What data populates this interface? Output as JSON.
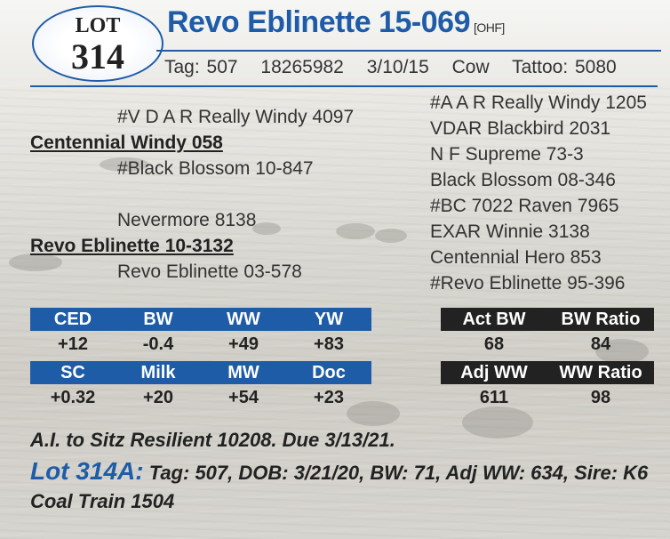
{
  "lot": {
    "label": "LOT",
    "number": "314"
  },
  "animal": {
    "name": "Revo Eblinette 15-069",
    "tag_code": "[OHF]",
    "tag": "Tag: 507",
    "reg": "18265982",
    "dob": "3/10/15",
    "sex": "Cow",
    "tattoo": "Tattoo: 5080"
  },
  "pedigree": {
    "sire": "Centennial Windy 058",
    "sire_sire": "#V D A R Really Windy 4097",
    "sire_dam": "#Black Blossom 10-847",
    "dam": "Revo Eblinette 10-3132",
    "dam_sire": "Nevermore 8138",
    "dam_dam": "Revo Eblinette 03-578",
    "right": [
      "#A A R Really Windy 1205",
      "VDAR Blackbird 2031",
      "N F Supreme 73-3",
      "Black Blossom 08-346",
      "#BC 7022 Raven 7965",
      "EXAR Winnie 3138",
      "Centennial Hero 853",
      "#Revo Eblinette 95-396"
    ]
  },
  "epd": {
    "row1": [
      {
        "label": "CED",
        "value": "+12"
      },
      {
        "label": "BW",
        "value": "-0.4"
      },
      {
        "label": "WW",
        "value": "+49"
      },
      {
        "label": "YW",
        "value": "+83"
      }
    ],
    "row2": [
      {
        "label": "SC",
        "value": "+0.32"
      },
      {
        "label": "Milk",
        "value": "+20"
      },
      {
        "label": "MW",
        "value": "+54"
      },
      {
        "label": "Doc",
        "value": "+23"
      }
    ]
  },
  "performance": {
    "row1": [
      {
        "label": "Act BW",
        "value": "68"
      },
      {
        "label": "BW Ratio",
        "value": "84"
      }
    ],
    "row2": [
      {
        "label": "Adj WW",
        "value": "611"
      },
      {
        "label": "WW Ratio",
        "value": "98"
      }
    ]
  },
  "breeding_note": "A.I. to Sitz Resilient 10208. Due 3/13/21.",
  "lot_a": {
    "label": "Lot 314A:",
    "text": "Tag: 507, DOB: 3/21/20, BW: 71, Adj WW: 634, Sire: K6 Coal Train 1504"
  },
  "colors": {
    "accent": "#1e5ca8",
    "dark": "#222222"
  }
}
